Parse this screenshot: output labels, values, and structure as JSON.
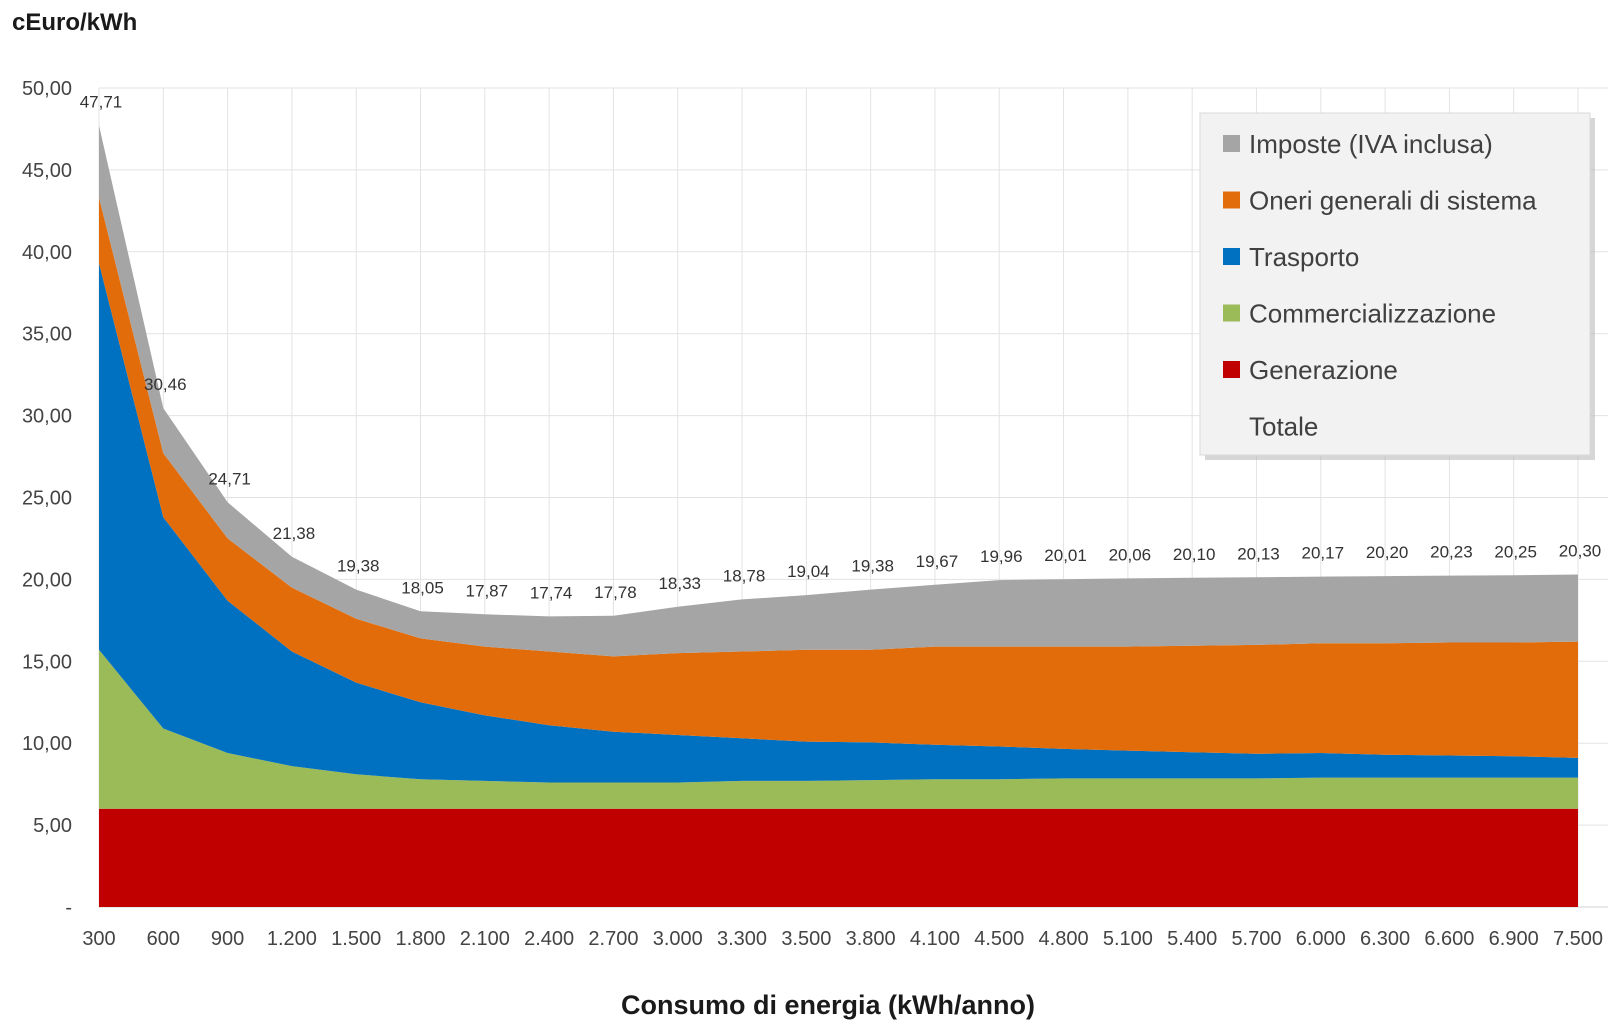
{
  "chart_data": {
    "type": "area",
    "stacked": true,
    "title": "",
    "ylabel": "cEuro/kWh",
    "xlabel": "Consumo di energia (kWh/anno)",
    "ylim": [
      0,
      50
    ],
    "yticks": [
      {
        "value": 0,
        "label": "-"
      },
      {
        "value": 5,
        "label": "5,00"
      },
      {
        "value": 10,
        "label": "10,00"
      },
      {
        "value": 15,
        "label": "15,00"
      },
      {
        "value": 20,
        "label": "20,00"
      },
      {
        "value": 25,
        "label": "25,00"
      },
      {
        "value": 30,
        "label": "30,00"
      },
      {
        "value": 35,
        "label": "35,00"
      },
      {
        "value": 40,
        "label": "40,00"
      },
      {
        "value": 45,
        "label": "45,00"
      },
      {
        "value": 50,
        "label": "50,00"
      }
    ],
    "categories": [
      "300",
      "600",
      "900",
      "1.200",
      "1.500",
      "1.800",
      "2.100",
      "2.400",
      "2.700",
      "3.000",
      "3.300",
      "3.500",
      "3.800",
      "4.100",
      "4.500",
      "4.800",
      "5.100",
      "5.400",
      "5.700",
      "6.000",
      "6.300",
      "6.600",
      "6.900",
      "7.500"
    ],
    "grid": true,
    "legend_position": "top-right",
    "series": [
      {
        "name": "Generazione",
        "color": "#c00000",
        "values": [
          6.0,
          6.0,
          6.0,
          6.0,
          6.0,
          6.0,
          6.0,
          6.0,
          6.0,
          6.0,
          6.0,
          6.0,
          6.0,
          6.0,
          6.0,
          6.0,
          6.0,
          6.0,
          6.0,
          6.0,
          6.0,
          6.0,
          6.0,
          6.0
        ]
      },
      {
        "name": "Commercializzazione",
        "color": "#9bbb59",
        "values": [
          9.7,
          4.9,
          3.4,
          2.6,
          2.1,
          1.8,
          1.7,
          1.6,
          1.6,
          1.6,
          1.7,
          1.7,
          1.75,
          1.8,
          1.8,
          1.85,
          1.85,
          1.85,
          1.85,
          1.9,
          1.9,
          1.9,
          1.9,
          1.9
        ]
      },
      {
        "name": "Trasporto",
        "color": "#0070c0",
        "values": [
          23.6,
          12.9,
          9.3,
          7.0,
          5.6,
          4.7,
          4.0,
          3.5,
          3.1,
          2.9,
          2.6,
          2.4,
          2.3,
          2.1,
          2.0,
          1.8,
          1.7,
          1.6,
          1.5,
          1.5,
          1.4,
          1.35,
          1.3,
          1.2
        ]
      },
      {
        "name": "Oneri generali di sistema",
        "color": "#e36c0a",
        "values": [
          4.0,
          3.9,
          3.8,
          3.9,
          3.9,
          3.9,
          4.2,
          4.5,
          4.6,
          5.0,
          5.3,
          5.6,
          5.65,
          6.0,
          6.1,
          6.25,
          6.35,
          6.5,
          6.65,
          6.7,
          6.8,
          6.9,
          6.95,
          7.1
        ]
      },
      {
        "name": "Imposte (IVA inclusa)",
        "color": "#a5a5a5",
        "values": [
          4.41,
          2.76,
          2.21,
          1.88,
          1.78,
          1.65,
          1.97,
          2.14,
          2.48,
          2.83,
          3.18,
          3.34,
          3.68,
          3.77,
          4.06,
          4.11,
          4.16,
          4.15,
          4.13,
          4.07,
          4.1,
          4.08,
          4.1,
          4.1
        ]
      }
    ],
    "totale": {
      "name": "Totale",
      "values": [
        47.71,
        30.46,
        24.71,
        21.38,
        19.38,
        18.05,
        17.87,
        17.74,
        17.78,
        18.33,
        18.78,
        19.04,
        19.38,
        19.67,
        19.96,
        20.01,
        20.06,
        20.1,
        20.13,
        20.17,
        20.2,
        20.23,
        20.25,
        20.3
      ],
      "labels": [
        "47,71",
        "30,46",
        "24,71",
        "21,38",
        "19,38",
        "18,05",
        "17,87",
        "17,74",
        "17,78",
        "18,33",
        "18,78",
        "19,04",
        "19,38",
        "19,67",
        "19,96",
        "20,01",
        "20,06",
        "20,10",
        "20,13",
        "20,17",
        "20,20",
        "20,23",
        "20,25",
        "20,30"
      ]
    },
    "legend_order": [
      "Imposte (IVA inclusa)",
      "Oneri generali di sistema",
      "Trasporto",
      "Commercializzazione",
      "Generazione",
      "Totale"
    ]
  }
}
